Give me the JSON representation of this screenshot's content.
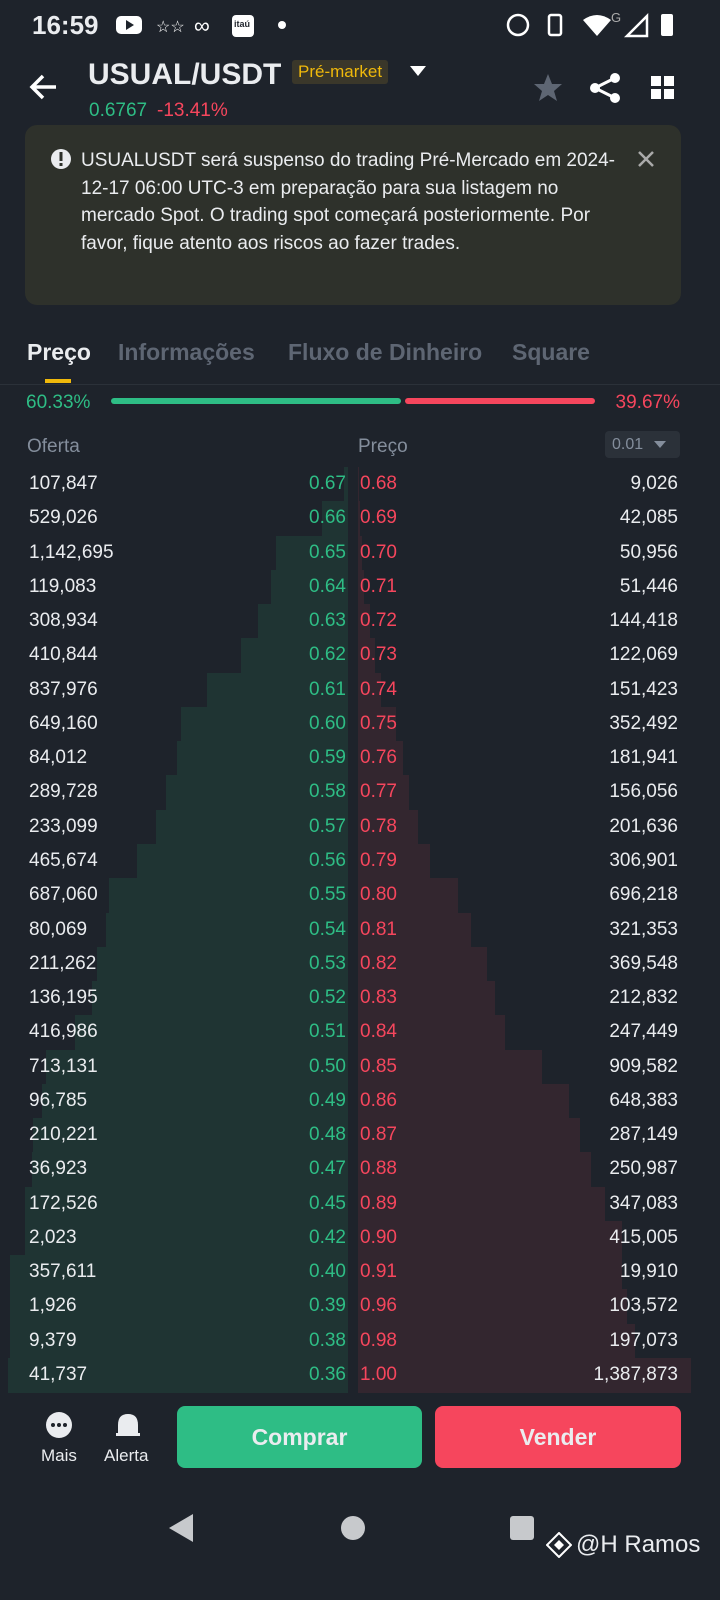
{
  "status_bar": {
    "time": "16:59",
    "carrier_logo": "itaú",
    "network": "G"
  },
  "header": {
    "pair": "USUAL/USDT",
    "badge": "Pré-market",
    "price": "0.6767",
    "change": "-13.41%"
  },
  "alert": {
    "text": "USUALUSDT será suspenso do trading Pré-Mercado em 2024-12-17 06:00 UTC-3 em preparação para sua listagem no mercado Spot. O trading spot começará posteriormente. Por favor, fique atento aos riscos ao fazer trades."
  },
  "tabs": [
    "Preço",
    "Informações",
    "Fluxo de Dinheiro",
    "Square"
  ],
  "ratio": {
    "buy": {
      "value": 60.33,
      "label": "60.33%"
    },
    "sell": {
      "value": 39.67,
      "label": "39.67%"
    }
  },
  "order_book": {
    "headers": {
      "bid": "Oferta",
      "price": "Preço",
      "precision": "0.01"
    },
    "rows": [
      {
        "bid_qty": {
          "value": 107847,
          "label": "107,847"
        },
        "bid_price": "0.67",
        "ask_price": "0.68",
        "ask_qty": {
          "value": 9026,
          "label": "9,026"
        }
      },
      {
        "bid_qty": {
          "value": 529026,
          "label": "529,026"
        },
        "bid_price": "0.66",
        "ask_price": "0.69",
        "ask_qty": {
          "value": 42085,
          "label": "42,085"
        }
      },
      {
        "bid_qty": {
          "value": 1142695,
          "label": "1,142,695"
        },
        "bid_price": "0.65",
        "ask_price": "0.70",
        "ask_qty": {
          "value": 50956,
          "label": "50,956"
        }
      },
      {
        "bid_qty": {
          "value": 119083,
          "label": "119,083"
        },
        "bid_price": "0.64",
        "ask_price": "0.71",
        "ask_qty": {
          "value": 51446,
          "label": "51,446"
        }
      },
      {
        "bid_qty": {
          "value": 308934,
          "label": "308,934"
        },
        "bid_price": "0.63",
        "ask_price": "0.72",
        "ask_qty": {
          "value": 144418,
          "label": "144,418"
        }
      },
      {
        "bid_qty": {
          "value": 410844,
          "label": "410,844"
        },
        "bid_price": "0.62",
        "ask_price": "0.73",
        "ask_qty": {
          "value": 122069,
          "label": "122,069"
        }
      },
      {
        "bid_qty": {
          "value": 837976,
          "label": "837,976"
        },
        "bid_price": "0.61",
        "ask_price": "0.74",
        "ask_qty": {
          "value": 151423,
          "label": "151,423"
        }
      },
      {
        "bid_qty": {
          "value": 649160,
          "label": "649,160"
        },
        "bid_price": "0.60",
        "ask_price": "0.75",
        "ask_qty": {
          "value": 352492,
          "label": "352,492"
        }
      },
      {
        "bid_qty": {
          "value": 84012,
          "label": "84,012"
        },
        "bid_price": "0.59",
        "ask_price": "0.76",
        "ask_qty": {
          "value": 181941,
          "label": "181,941"
        }
      },
      {
        "bid_qty": {
          "value": 289728,
          "label": "289,728"
        },
        "bid_price": "0.58",
        "ask_price": "0.77",
        "ask_qty": {
          "value": 156056,
          "label": "156,056"
        }
      },
      {
        "bid_qty": {
          "value": 233099,
          "label": "233,099"
        },
        "bid_price": "0.57",
        "ask_price": "0.78",
        "ask_qty": {
          "value": 201636,
          "label": "201,636"
        }
      },
      {
        "bid_qty": {
          "value": 465674,
          "label": "465,674"
        },
        "bid_price": "0.56",
        "ask_price": "0.79",
        "ask_qty": {
          "value": 306901,
          "label": "306,901"
        }
      },
      {
        "bid_qty": {
          "value": 687060,
          "label": "687,060"
        },
        "bid_price": "0.55",
        "ask_price": "0.80",
        "ask_qty": {
          "value": 696218,
          "label": "696,218"
        }
      },
      {
        "bid_qty": {
          "value": 80069,
          "label": "80,069"
        },
        "bid_price": "0.54",
        "ask_price": "0.81",
        "ask_qty": {
          "value": 321353,
          "label": "321,353"
        }
      },
      {
        "bid_qty": {
          "value": 211262,
          "label": "211,262"
        },
        "bid_price": "0.53",
        "ask_price": "0.82",
        "ask_qty": {
          "value": 369548,
          "label": "369,548"
        }
      },
      {
        "bid_qty": {
          "value": 136195,
          "label": "136,195"
        },
        "bid_price": "0.52",
        "ask_price": "0.83",
        "ask_qty": {
          "value": 212832,
          "label": "212,832"
        }
      },
      {
        "bid_qty": {
          "value": 416986,
          "label": "416,986"
        },
        "bid_price": "0.51",
        "ask_price": "0.84",
        "ask_qty": {
          "value": 247449,
          "label": "247,449"
        }
      },
      {
        "bid_qty": {
          "value": 713131,
          "label": "713,131"
        },
        "bid_price": "0.50",
        "ask_price": "0.85",
        "ask_qty": {
          "value": 909582,
          "label": "909,582"
        }
      },
      {
        "bid_qty": {
          "value": 96785,
          "label": "96,785"
        },
        "bid_price": "0.49",
        "ask_price": "0.86",
        "ask_qty": {
          "value": 648383,
          "label": "648,383"
        }
      },
      {
        "bid_qty": {
          "value": 210221,
          "label": "210,221"
        },
        "bid_price": "0.48",
        "ask_price": "0.87",
        "ask_qty": {
          "value": 287149,
          "label": "287,149"
        }
      },
      {
        "bid_qty": {
          "value": 36923,
          "label": "36,923"
        },
        "bid_price": "0.47",
        "ask_price": "0.88",
        "ask_qty": {
          "value": 250987,
          "label": "250,987"
        }
      },
      {
        "bid_qty": {
          "value": 172526,
          "label": "172,526"
        },
        "bid_price": "0.45",
        "ask_price": "0.89",
        "ask_qty": {
          "value": 347083,
          "label": "347,083"
        }
      },
      {
        "bid_qty": {
          "value": 2023,
          "label": "2,023"
        },
        "bid_price": "0.42",
        "ask_price": "0.90",
        "ask_qty": {
          "value": 415005,
          "label": "415,005"
        }
      },
      {
        "bid_qty": {
          "value": 357611,
          "label": "357,611"
        },
        "bid_price": "0.40",
        "ask_price": "0.91",
        "ask_qty": {
          "value": 19910,
          "label": "19,910"
        }
      },
      {
        "bid_qty": {
          "value": 1926,
          "label": "1,926"
        },
        "bid_price": "0.39",
        "ask_price": "0.96",
        "ask_qty": {
          "value": 103572,
          "label": "103,572"
        }
      },
      {
        "bid_qty": {
          "value": 9379,
          "label": "9,379"
        },
        "bid_price": "0.38",
        "ask_price": "0.98",
        "ask_qty": {
          "value": 197073,
          "label": "197,073"
        }
      },
      {
        "bid_qty": {
          "value": 41737,
          "label": "41,737"
        },
        "bid_price": "0.36",
        "ask_price": "1.00",
        "ask_qty": {
          "value": 1387873,
          "label": "1,387,873"
        }
      }
    ]
  },
  "bottom_bar": {
    "more": "Mais",
    "alert": "Alerta",
    "buy": "Comprar",
    "sell": "Vender"
  },
  "watermark": "@H Ramos"
}
